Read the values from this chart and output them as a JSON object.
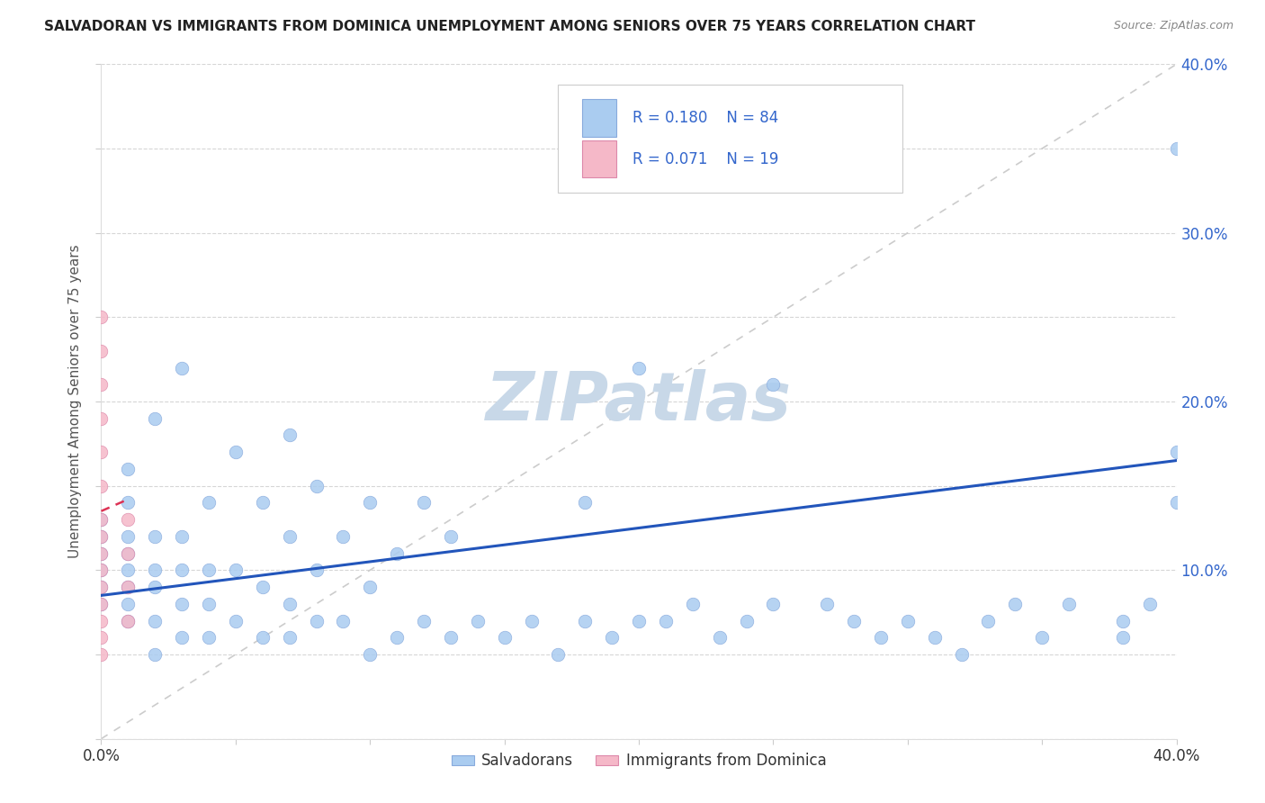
{
  "title": "SALVADORAN VS IMMIGRANTS FROM DOMINICA UNEMPLOYMENT AMONG SENIORS OVER 75 YEARS CORRELATION CHART",
  "source": "Source: ZipAtlas.com",
  "ylabel": "Unemployment Among Seniors over 75 years",
  "xlim": [
    0.0,
    0.4
  ],
  "ylim": [
    0.0,
    0.4
  ],
  "color_salvadoran": "#aaccf0",
  "color_dominica": "#f5b8c8",
  "color_line_salvadoran": "#2255bb",
  "color_line_dominica": "#dd3355",
  "color_diagonal": "#cccccc",
  "watermark": "ZIPatlas",
  "watermark_color": "#c8d8e8",
  "sal_x": [
    0.0,
    0.0,
    0.0,
    0.0,
    0.0,
    0.0,
    0.01,
    0.01,
    0.01,
    0.01,
    0.01,
    0.01,
    0.01,
    0.01,
    0.02,
    0.02,
    0.02,
    0.02,
    0.02,
    0.02,
    0.03,
    0.03,
    0.03,
    0.03,
    0.03,
    0.04,
    0.04,
    0.04,
    0.04,
    0.05,
    0.05,
    0.05,
    0.06,
    0.06,
    0.06,
    0.07,
    0.07,
    0.07,
    0.07,
    0.08,
    0.08,
    0.08,
    0.09,
    0.09,
    0.1,
    0.1,
    0.1,
    0.11,
    0.11,
    0.12,
    0.12,
    0.13,
    0.13,
    0.14,
    0.15,
    0.16,
    0.17,
    0.18,
    0.18,
    0.19,
    0.2,
    0.2,
    0.21,
    0.22,
    0.23,
    0.24,
    0.25,
    0.25,
    0.27,
    0.28,
    0.29,
    0.3,
    0.31,
    0.32,
    0.33,
    0.34,
    0.35,
    0.36,
    0.38,
    0.38,
    0.39,
    0.4,
    0.4,
    0.4
  ],
  "sal_y": [
    0.08,
    0.09,
    0.1,
    0.11,
    0.12,
    0.13,
    0.07,
    0.08,
    0.09,
    0.1,
    0.11,
    0.12,
    0.14,
    0.16,
    0.05,
    0.07,
    0.09,
    0.1,
    0.12,
    0.19,
    0.06,
    0.08,
    0.1,
    0.12,
    0.22,
    0.06,
    0.08,
    0.1,
    0.14,
    0.07,
    0.1,
    0.17,
    0.06,
    0.09,
    0.14,
    0.06,
    0.08,
    0.12,
    0.18,
    0.07,
    0.1,
    0.15,
    0.07,
    0.12,
    0.05,
    0.09,
    0.14,
    0.06,
    0.11,
    0.07,
    0.14,
    0.06,
    0.12,
    0.07,
    0.06,
    0.07,
    0.05,
    0.07,
    0.14,
    0.06,
    0.07,
    0.22,
    0.07,
    0.08,
    0.06,
    0.07,
    0.08,
    0.21,
    0.08,
    0.07,
    0.06,
    0.07,
    0.06,
    0.05,
    0.07,
    0.08,
    0.06,
    0.08,
    0.06,
    0.07,
    0.08,
    0.14,
    0.17,
    0.35
  ],
  "dom_x": [
    0.0,
    0.0,
    0.0,
    0.0,
    0.0,
    0.0,
    0.0,
    0.0,
    0.0,
    0.0,
    0.0,
    0.0,
    0.0,
    0.0,
    0.0,
    0.01,
    0.01,
    0.01,
    0.01
  ],
  "dom_y": [
    0.05,
    0.06,
    0.07,
    0.08,
    0.09,
    0.1,
    0.11,
    0.12,
    0.13,
    0.15,
    0.17,
    0.19,
    0.21,
    0.23,
    0.25,
    0.07,
    0.09,
    0.11,
    0.13
  ],
  "sal_line_x0": 0.0,
  "sal_line_x1": 0.4,
  "sal_line_y0": 0.085,
  "sal_line_y1": 0.165,
  "dom_line_x0": 0.0,
  "dom_line_x1": 0.01,
  "dom_line_y0": 0.135,
  "dom_line_y1": 0.142
}
